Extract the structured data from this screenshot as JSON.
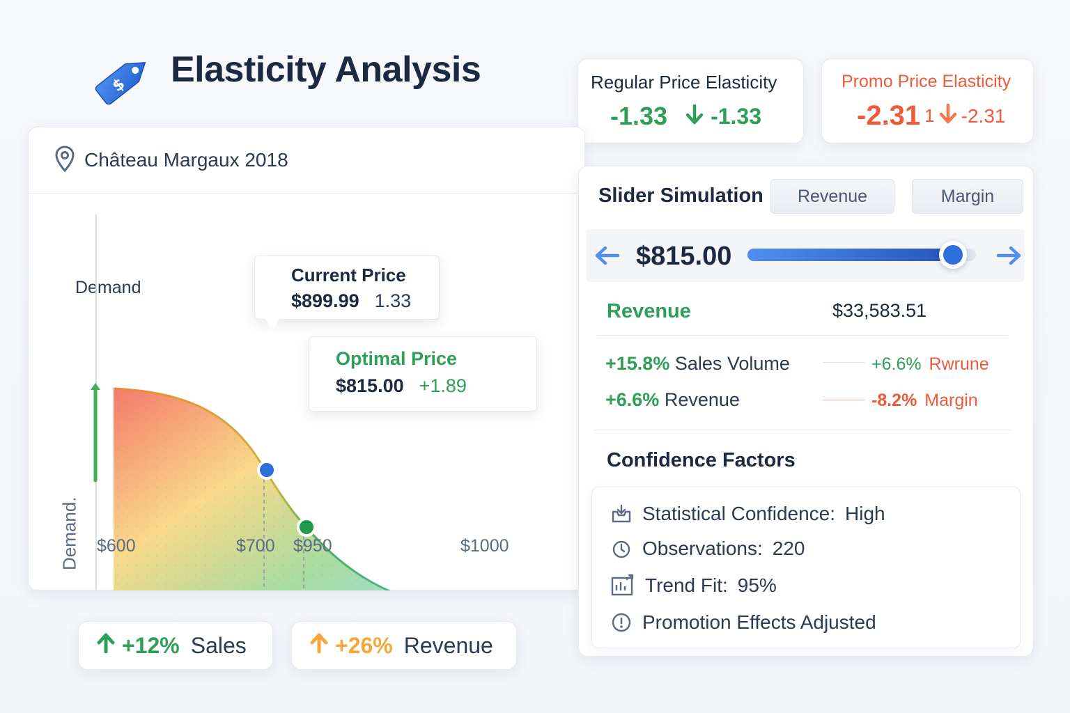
{
  "header": {
    "title": "Elasticity Analysis",
    "logo_icon": "price-tag-icon",
    "accent_color": "#2f6fdb"
  },
  "kpis": {
    "regular": {
      "label": "Regular Price Elasticity",
      "value": "-1.33",
      "delta": "-1.33",
      "color": "#2f9e58"
    },
    "promo": {
      "label": "Promo Price Elasticity",
      "value": "-2.31",
      "marker": "1",
      "delta": "-2.31",
      "color": "#ef5a3c"
    }
  },
  "product": {
    "name": "Château Margaux 2018",
    "icon": "map-pin-icon"
  },
  "chart": {
    "top_label": "Demand",
    "y_axis_label": "Demand.",
    "current_price": {
      "title": "Current Price",
      "price": "$899.99",
      "elasticity": "1.33"
    },
    "optimal_price": {
      "title": "Optimal Price",
      "price": "$815.00",
      "change": "+1.89"
    }
  },
  "chart_data": {
    "type": "area",
    "xlabel": "",
    "ylabel": "Demand.",
    "tick_labels": [
      "$600",
      "$700",
      "$950",
      "$1000"
    ],
    "points": [
      {
        "name": "current-price-point",
        "color": "#2f6fdb"
      },
      {
        "name": "optimal-price-point",
        "color": "#1f9a4b"
      },
      {
        "name": "end-point",
        "color": "#3b78e0"
      }
    ],
    "gradient_colors": [
      "#f47a6a",
      "#f9d98a",
      "#a6dca0",
      "#9fdcf2"
    ]
  },
  "summary": {
    "sales": {
      "value": "+12%",
      "label": "Sales",
      "color": "#2f9e58"
    },
    "revenue": {
      "value": "+26%",
      "label": "Revenue",
      "color": "#f5a73b"
    }
  },
  "simulation": {
    "title": "Slider Simulation",
    "tabs": [
      "Revenue",
      "Margin"
    ],
    "price": "$815.00",
    "slider_fraction": 0.9,
    "revenue_label": "Revenue",
    "revenue_value": "$33,583.51",
    "impacts": [
      {
        "value": "+15.8%",
        "label": "Sales Volume",
        "value_color": "#2f9e58"
      },
      {
        "value": "+6.6%",
        "label": "Rwrune",
        "value_color": "#2f9e58",
        "label_color": "#ef5a3c"
      },
      {
        "value": "+6.6%",
        "label": "Revenue",
        "value_color": "#2f9e58"
      },
      {
        "value": "-8.2%",
        "label": "Margin",
        "value_color": "#ef5a3c",
        "label_color": "#ef5a3c"
      }
    ]
  },
  "confidence": {
    "title": "Confidence Factors",
    "rows": [
      {
        "icon": "inbox-icon",
        "label": "Statistical Confidence:",
        "value": "High"
      },
      {
        "icon": "clock-icon",
        "label": "Observations:",
        "value": "220"
      },
      {
        "icon": "trend-chart-icon",
        "label": "Trend Fit:",
        "value": "95%"
      },
      {
        "icon": "info-icon",
        "label": "Promotion Effects Adjusted",
        "value": ""
      }
    ]
  }
}
